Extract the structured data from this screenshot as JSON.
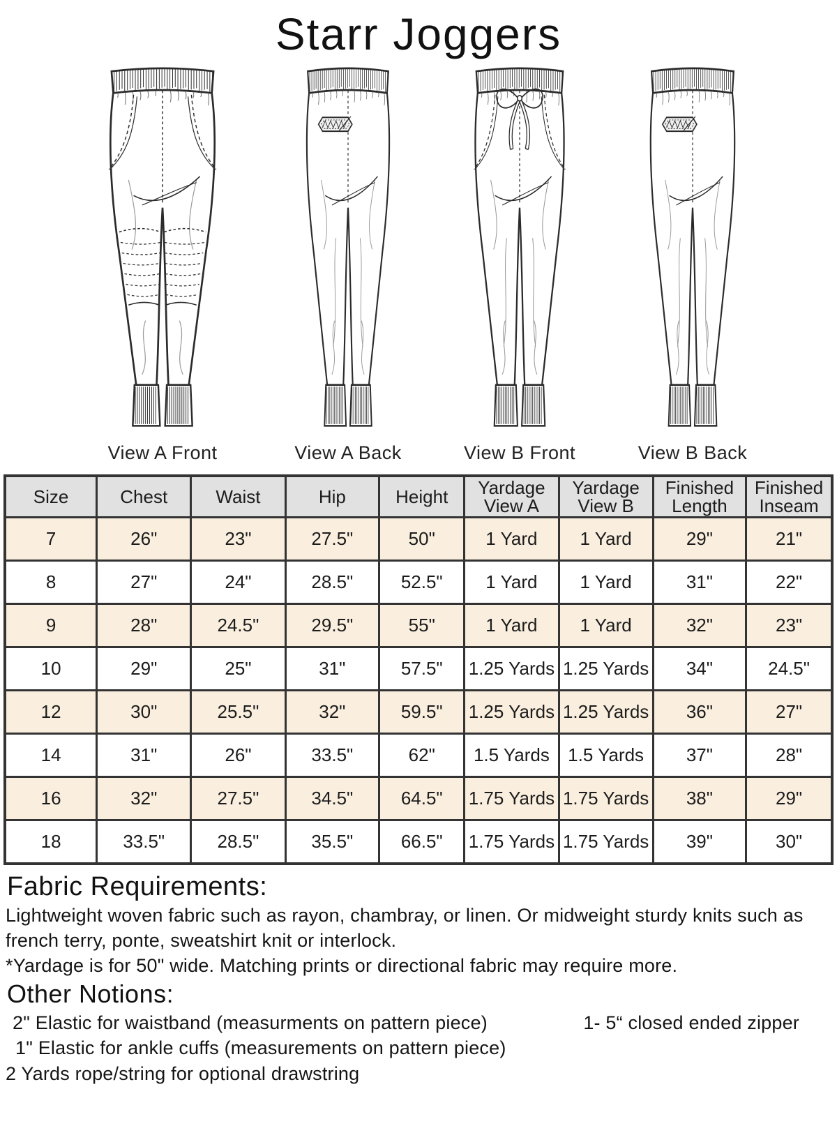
{
  "title": "Starr Joggers",
  "views": [
    {
      "label": "View A Front"
    },
    {
      "label": "View A Back"
    },
    {
      "label": "View B Front"
    },
    {
      "label": "View B Back"
    }
  ],
  "size_chart": {
    "columns": [
      {
        "line1": "Size"
      },
      {
        "line1": "Chest"
      },
      {
        "line1": "Waist"
      },
      {
        "line1": "Hip"
      },
      {
        "line1": "Height"
      },
      {
        "line1": "Yardage",
        "line2": "View A"
      },
      {
        "line1": "Yardage",
        "line2": "View B"
      },
      {
        "line1": "Finished",
        "line2": "Length"
      },
      {
        "line1": "Finished",
        "line2": "Inseam"
      }
    ],
    "rows": [
      {
        "size": "7",
        "chest": "26\"",
        "waist": "23\"",
        "hip": "27.5\"",
        "height": "50\"",
        "yardage_a": "1 Yard",
        "yardage_b": "1 Yard",
        "finished_length": "29\"",
        "finished_inseam": "21\""
      },
      {
        "size": "8",
        "chest": "27\"",
        "waist": "24\"",
        "hip": "28.5\"",
        "height": "52.5\"",
        "yardage_a": "1 Yard",
        "yardage_b": "1 Yard",
        "finished_length": "31\"",
        "finished_inseam": "22\""
      },
      {
        "size": "9",
        "chest": "28\"",
        "waist": "24.5\"",
        "hip": "29.5\"",
        "height": "55\"",
        "yardage_a": "1 Yard",
        "yardage_b": "1 Yard",
        "finished_length": "32\"",
        "finished_inseam": "23\""
      },
      {
        "size": "10",
        "chest": "29\"",
        "waist": "25\"",
        "hip": "31\"",
        "height": "57.5\"",
        "yardage_a": "1.25 Yards",
        "yardage_b": "1.25 Yards",
        "finished_length": "34\"",
        "finished_inseam": "24.5\""
      },
      {
        "size": "12",
        "chest": "30\"",
        "waist": "25.5\"",
        "hip": "32\"",
        "height": "59.5\"",
        "yardage_a": "1.25 Yards",
        "yardage_b": "1.25 Yards",
        "finished_length": "36\"",
        "finished_inseam": "27\""
      },
      {
        "size": "14",
        "chest": "31\"",
        "waist": "26\"",
        "hip": "33.5\"",
        "height": "62\"",
        "yardage_a": "1.5 Yards",
        "yardage_b": "1.5 Yards",
        "finished_length": "37\"",
        "finished_inseam": "28\""
      },
      {
        "size": "16",
        "chest": "32\"",
        "waist": "27.5\"",
        "hip": "34.5\"",
        "height": "64.5\"",
        "yardage_a": "1.75 Yards",
        "yardage_b": "1.75 Yards",
        "finished_length": "38\"",
        "finished_inseam": "29\""
      },
      {
        "size": "18",
        "chest": "33.5\"",
        "waist": "28.5\"",
        "hip": "35.5\"",
        "height": "66.5\"",
        "yardage_a": "1.75 Yards",
        "yardage_b": "1.75 Yards",
        "finished_length": "39\"",
        "finished_inseam": "30\""
      }
    ]
  },
  "fabric_requirements": {
    "heading": "Fabric Requirements:",
    "body": "Lightweight woven fabric such as rayon, chambray, or linen. Or midweight sturdy knits such as french terry, ponte, sweatshirt knit or interlock.",
    "note": "*Yardage is for 50\" wide. Matching prints or directional fabric may require more."
  },
  "other_notions": {
    "heading": "Other Notions:",
    "waistband_elastic": "2\" Elastic for waistband (measurments on pattern piece)",
    "zipper": "1- 5“ closed ended zipper",
    "ankle_elastic": "1\" Elastic for ankle cuffs (measurements on pattern piece)",
    "drawstring": "2 Yards rope/string for optional drawstring"
  },
  "colors": {
    "table_header_bg": "#e1e1e1",
    "table_stripe_bg": "#faefdf",
    "table_border": "#333333",
    "ink": "#1c1c1c"
  }
}
